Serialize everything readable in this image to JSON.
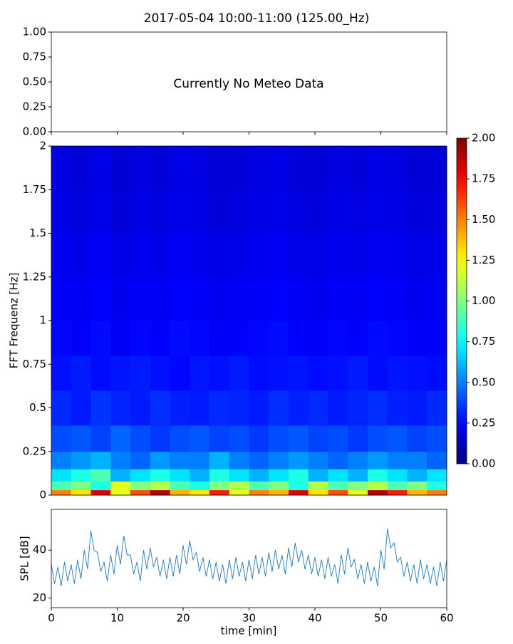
{
  "chart_data": [
    {
      "type": "annotation",
      "title": "2017-05-04 10:00-11:00 (125.00_Hz)",
      "annotation": "Currently No Meteo Data",
      "ylim": [
        0,
        1
      ],
      "yticks": [
        {
          "value": 0,
          "label": "0.00"
        },
        {
          "value": 0.25,
          "label": "0.25"
        },
        {
          "value": 0.5,
          "label": "0.50"
        },
        {
          "value": 0.75,
          "label": "0.75"
        },
        {
          "value": 1,
          "label": "1.00"
        }
      ]
    },
    {
      "type": "heatmap",
      "ylabel": "FFT Frequenz [Hz]",
      "colormap": "jet",
      "xbins": [
        0,
        3,
        6,
        9,
        12,
        15,
        18,
        21,
        24,
        27,
        30,
        33,
        36,
        39,
        42,
        45,
        48,
        51,
        54,
        57,
        60
      ],
      "ybins": [
        0,
        0.03,
        0.08,
        0.15,
        0.25,
        0.4,
        0.6,
        0.8,
        1.0,
        1.25,
        1.5,
        1.75,
        2
      ],
      "z": [
        [
          1.5,
          1.3,
          1.8,
          1.2,
          1.6,
          1.9,
          1.4,
          1.3,
          1.7,
          1.2,
          1.5,
          1.4,
          1.8,
          1.3,
          1.6,
          1.2,
          1.9,
          1.7,
          1.4,
          1.5
        ],
        [
          0.9,
          1.0,
          0.8,
          1.2,
          1.0,
          1.1,
          0.9,
          0.8,
          1.0,
          1.1,
          0.9,
          1.0,
          0.8,
          1.1,
          0.9,
          1.0,
          1.1,
          0.9,
          1.0,
          0.8
        ],
        [
          0.7,
          0.8,
          0.9,
          0.6,
          0.7,
          0.8,
          0.7,
          0.6,
          0.8,
          0.7,
          0.6,
          0.7,
          0.8,
          0.6,
          0.7,
          0.6,
          0.8,
          0.7,
          0.6,
          0.7
        ],
        [
          0.5,
          0.55,
          0.6,
          0.5,
          0.45,
          0.55,
          0.5,
          0.5,
          0.6,
          0.5,
          0.45,
          0.5,
          0.55,
          0.5,
          0.45,
          0.5,
          0.55,
          0.5,
          0.5,
          0.45
        ],
        [
          0.4,
          0.42,
          0.38,
          0.45,
          0.4,
          0.36,
          0.4,
          0.42,
          0.38,
          0.4,
          0.36,
          0.4,
          0.42,
          0.38,
          0.4,
          0.36,
          0.4,
          0.42,
          0.38,
          0.4
        ],
        [
          0.33,
          0.3,
          0.35,
          0.32,
          0.3,
          0.34,
          0.31,
          0.3,
          0.33,
          0.32,
          0.3,
          0.34,
          0.31,
          0.33,
          0.3,
          0.32,
          0.34,
          0.31,
          0.3,
          0.33
        ],
        [
          0.28,
          0.3,
          0.27,
          0.29,
          0.3,
          0.28,
          0.26,
          0.29,
          0.28,
          0.3,
          0.27,
          0.28,
          0.29,
          0.27,
          0.28,
          0.3,
          0.27,
          0.29,
          0.28,
          0.27
        ],
        [
          0.26,
          0.25,
          0.27,
          0.24,
          0.26,
          0.25,
          0.27,
          0.26,
          0.24,
          0.25,
          0.26,
          0.27,
          0.25,
          0.24,
          0.26,
          0.25,
          0.27,
          0.26,
          0.24,
          0.25
        ],
        [
          0.24,
          0.23,
          0.25,
          0.22,
          0.24,
          0.23,
          0.25,
          0.24,
          0.22,
          0.23,
          0.24,
          0.25,
          0.23,
          0.22,
          0.24,
          0.23,
          0.25,
          0.24,
          0.22,
          0.23
        ],
        [
          0.22,
          0.21,
          0.23,
          0.2,
          0.22,
          0.21,
          0.23,
          0.22,
          0.2,
          0.21,
          0.22,
          0.23,
          0.21,
          0.2,
          0.22,
          0.21,
          0.23,
          0.22,
          0.2,
          0.21
        ],
        [
          0.2,
          0.19,
          0.21,
          0.18,
          0.2,
          0.19,
          0.21,
          0.2,
          0.18,
          0.19,
          0.2,
          0.21,
          0.19,
          0.18,
          0.2,
          0.19,
          0.21,
          0.2,
          0.18,
          0.19
        ],
        [
          0.19,
          0.18,
          0.2,
          0.17,
          0.19,
          0.18,
          0.2,
          0.19,
          0.17,
          0.18,
          0.19,
          0.2,
          0.18,
          0.17,
          0.19,
          0.18,
          0.2,
          0.19,
          0.17,
          0.18
        ]
      ],
      "ylim": [
        0,
        2
      ],
      "yticks": [
        0,
        0.25,
        0.5,
        0.75,
        1,
        1.25,
        1.5,
        1.75,
        2
      ],
      "zlim": [
        0,
        2
      ],
      "zticks": [
        {
          "value": 0,
          "label": "0.00"
        },
        {
          "value": 0.25,
          "label": "0.25"
        },
        {
          "value": 0.5,
          "label": "0.50"
        },
        {
          "value": 0.75,
          "label": "0.75"
        },
        {
          "value": 1,
          "label": "1.00"
        },
        {
          "value": 1.25,
          "label": "1.25"
        },
        {
          "value": 1.5,
          "label": "1.50"
        },
        {
          "value": 1.75,
          "label": "1.75"
        },
        {
          "value": 2,
          "label": "2.00"
        }
      ]
    },
    {
      "type": "line",
      "xlabel": "time [min]",
      "ylabel": "SPL [dB]",
      "color": "#1f77b4",
      "x": [
        0,
        0.5,
        1,
        1.5,
        2,
        2.5,
        3,
        3.5,
        4,
        4.5,
        5,
        5.5,
        6,
        6.5,
        7,
        7.5,
        8,
        8.5,
        9,
        9.5,
        10,
        10.5,
        11,
        11.5,
        12,
        12.5,
        13,
        13.5,
        14,
        14.5,
        15,
        15.5,
        16,
        16.5,
        17,
        17.5,
        18,
        18.5,
        19,
        19.5,
        20,
        20.5,
        21,
        21.5,
        22,
        22.5,
        23,
        23.5,
        24,
        24.5,
        25,
        25.5,
        26,
        26.5,
        27,
        27.5,
        28,
        28.5,
        29,
        29.5,
        30,
        30.5,
        31,
        31.5,
        32,
        32.5,
        33,
        33.5,
        34,
        34.5,
        35,
        35.5,
        36,
        36.5,
        37,
        37.5,
        38,
        38.5,
        39,
        39.5,
        40,
        40.5,
        41,
        41.5,
        42,
        42.5,
        43,
        43.5,
        44,
        44.5,
        45,
        45.5,
        46,
        46.5,
        47,
        47.5,
        48,
        48.5,
        49,
        49.5,
        50,
        50.5,
        51,
        51.5,
        52,
        52.5,
        53,
        53.5,
        54,
        54.5,
        55,
        55.5,
        56,
        56.5,
        57,
        57.5,
        58,
        58.5,
        59,
        59.5,
        60
      ],
      "values": [
        34,
        26,
        33,
        25,
        35,
        27,
        34,
        26,
        36,
        28,
        40,
        32,
        48,
        40,
        39,
        31,
        35,
        27,
        38,
        30,
        42,
        34,
        46,
        38,
        38,
        30,
        35,
        27,
        40,
        32,
        41,
        33,
        37,
        29,
        36,
        28,
        37,
        29,
        38,
        30,
        42,
        34,
        44,
        36,
        39,
        31,
        37,
        29,
        36,
        28,
        35,
        27,
        34,
        26,
        36,
        28,
        37,
        29,
        35,
        27,
        36,
        28,
        38,
        30,
        37,
        29,
        39,
        31,
        40,
        32,
        38,
        30,
        41,
        33,
        43,
        35,
        40,
        32,
        38,
        30,
        37,
        29,
        36,
        28,
        37,
        29,
        34,
        26,
        38,
        30,
        41,
        33,
        36,
        28,
        34,
        26,
        35,
        27,
        33,
        25,
        40,
        32,
        49,
        41,
        43,
        35,
        37,
        29,
        35,
        27,
        34,
        26,
        36,
        28,
        34,
        26,
        33,
        25,
        35,
        27,
        36
      ],
      "xlim": [
        0,
        60
      ],
      "xticks": [
        0,
        10,
        20,
        30,
        40,
        50,
        60
      ],
      "ylim": [
        16,
        57
      ],
      "yticks": [
        20,
        40
      ]
    }
  ]
}
